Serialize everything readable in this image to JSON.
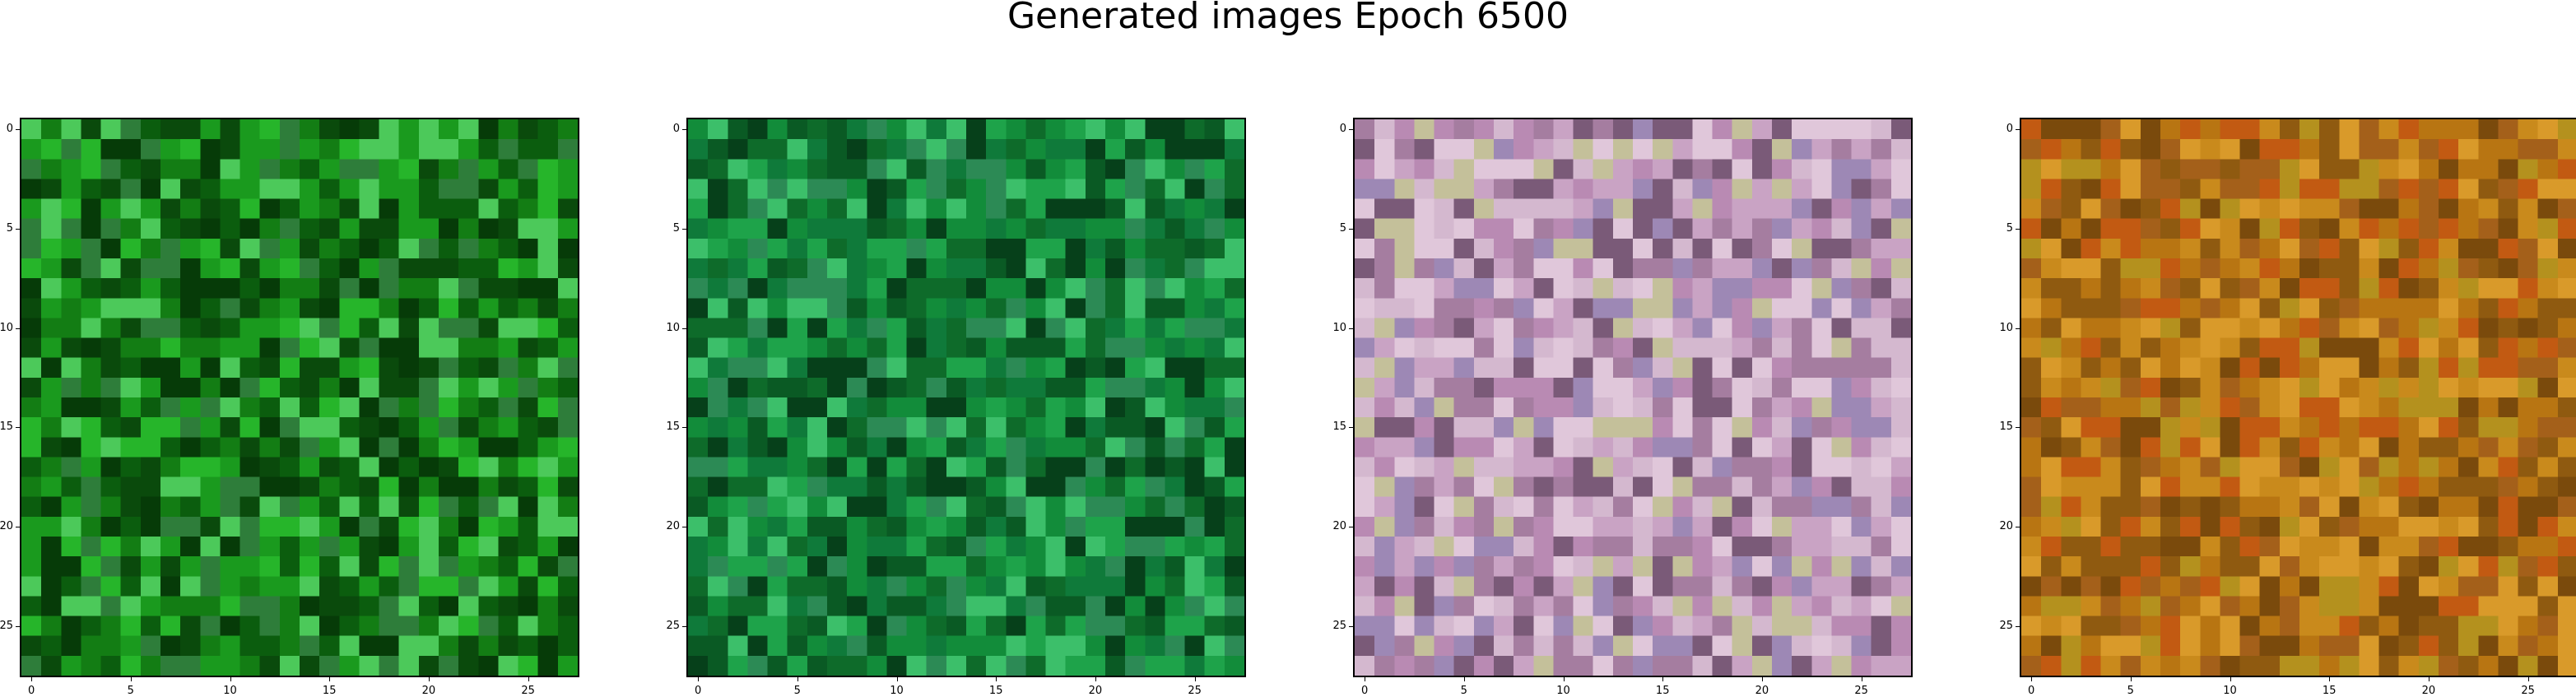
{
  "figure": {
    "title": "Generated images Epoch 6500"
  },
  "axis": {
    "size": 28,
    "x_ticks": [
      "0",
      "5",
      "10",
      "15",
      "20",
      "25"
    ],
    "y_ticks": [
      "0",
      "5",
      "10",
      "15",
      "20",
      "25"
    ]
  },
  "panels": [
    {
      "id": 1,
      "palette": [
        "#0b5d0e",
        "#137d14",
        "#1a9a1e",
        "#0a4a0c",
        "#26b52a",
        "#2e7d3a",
        "#4cc95a",
        "#063b08"
      ]
    },
    {
      "id": 2,
      "palette": [
        "#0e6b2a",
        "#128c3a",
        "#0a5a24",
        "#1ea34a",
        "#2c8a55",
        "#06401a",
        "#3cbf6a",
        "#0f7a3a"
      ]
    },
    {
      "id": 3,
      "palette": [
        "#c9a3c4",
        "#b98ab3",
        "#d4b8cf",
        "#a57da0",
        "#e0c7da",
        "#9d88b5",
        "#c4c09a",
        "#7a5a78"
      ]
    },
    {
      "id": 4,
      "palette": [
        "#b87512",
        "#c98a1c",
        "#8f5a10",
        "#d99a2a",
        "#a4601a",
        "#c25a12",
        "#7a4a0c",
        "#b4911e"
      ]
    }
  ]
}
